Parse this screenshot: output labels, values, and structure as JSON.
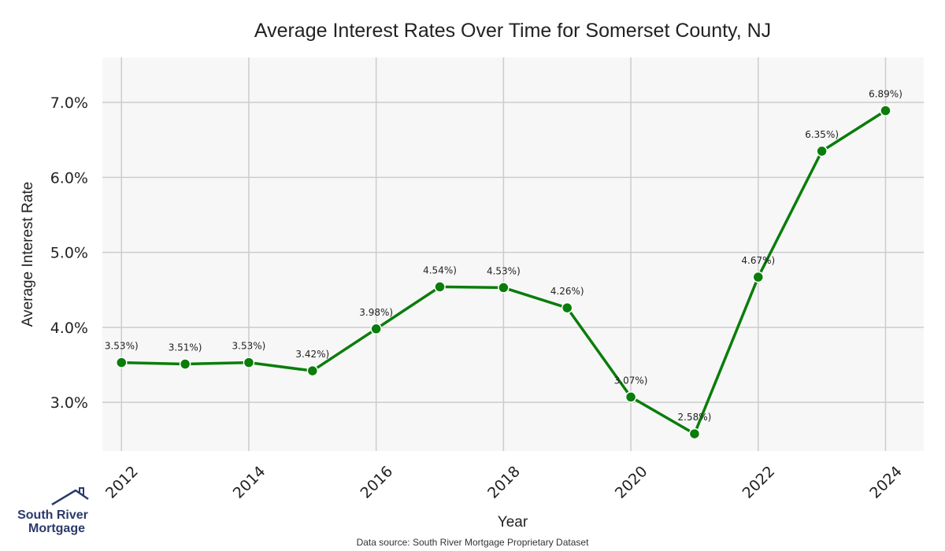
{
  "chart_data": {
    "type": "line",
    "title": "Average Interest Rates Over Time for Somerset County, NJ",
    "xlabel": "Year",
    "ylabel": "Average Interest Rate",
    "x": [
      2012,
      2013,
      2014,
      2015,
      2016,
      2017,
      2018,
      2019,
      2020,
      2021,
      2022,
      2023,
      2024
    ],
    "values": [
      3.53,
      3.51,
      3.53,
      3.42,
      3.98,
      4.54,
      4.53,
      4.26,
      3.07,
      2.58,
      4.67,
      6.35,
      6.89
    ],
    "data_labels": [
      "3.53%)",
      "3.51%)",
      "3.53%)",
      "3.42%)",
      "3.98%)",
      "4.54%)",
      "4.53%)",
      "4.26%)",
      "3.07%)",
      "2.58%)",
      "4.67%)",
      "6.35%)",
      "6.89%)"
    ],
    "x_ticks": [
      "2012",
      "2014",
      "2016",
      "2018",
      "2020",
      "2022",
      "2024"
    ],
    "y_ticks": [
      3.0,
      4.0,
      5.0,
      6.0,
      7.0
    ],
    "y_tick_labels": [
      "3.0%",
      "4.0%",
      "5.0%",
      "6.0%",
      "7.0%"
    ],
    "xlim": [
      2011.7,
      2024.6
    ],
    "ylim": [
      2.35,
      7.6
    ],
    "grid": true,
    "colors": {
      "line": "#0a7d0a",
      "plot_bg": "#f7f7f7",
      "grid": "#cccccc"
    }
  },
  "source_note": "Data source: South River Mortgage Proprietary Dataset",
  "logo": {
    "line1": "South River",
    "line2": "Mortgage",
    "icon": "house-icon",
    "color": "#2b3a6b"
  }
}
